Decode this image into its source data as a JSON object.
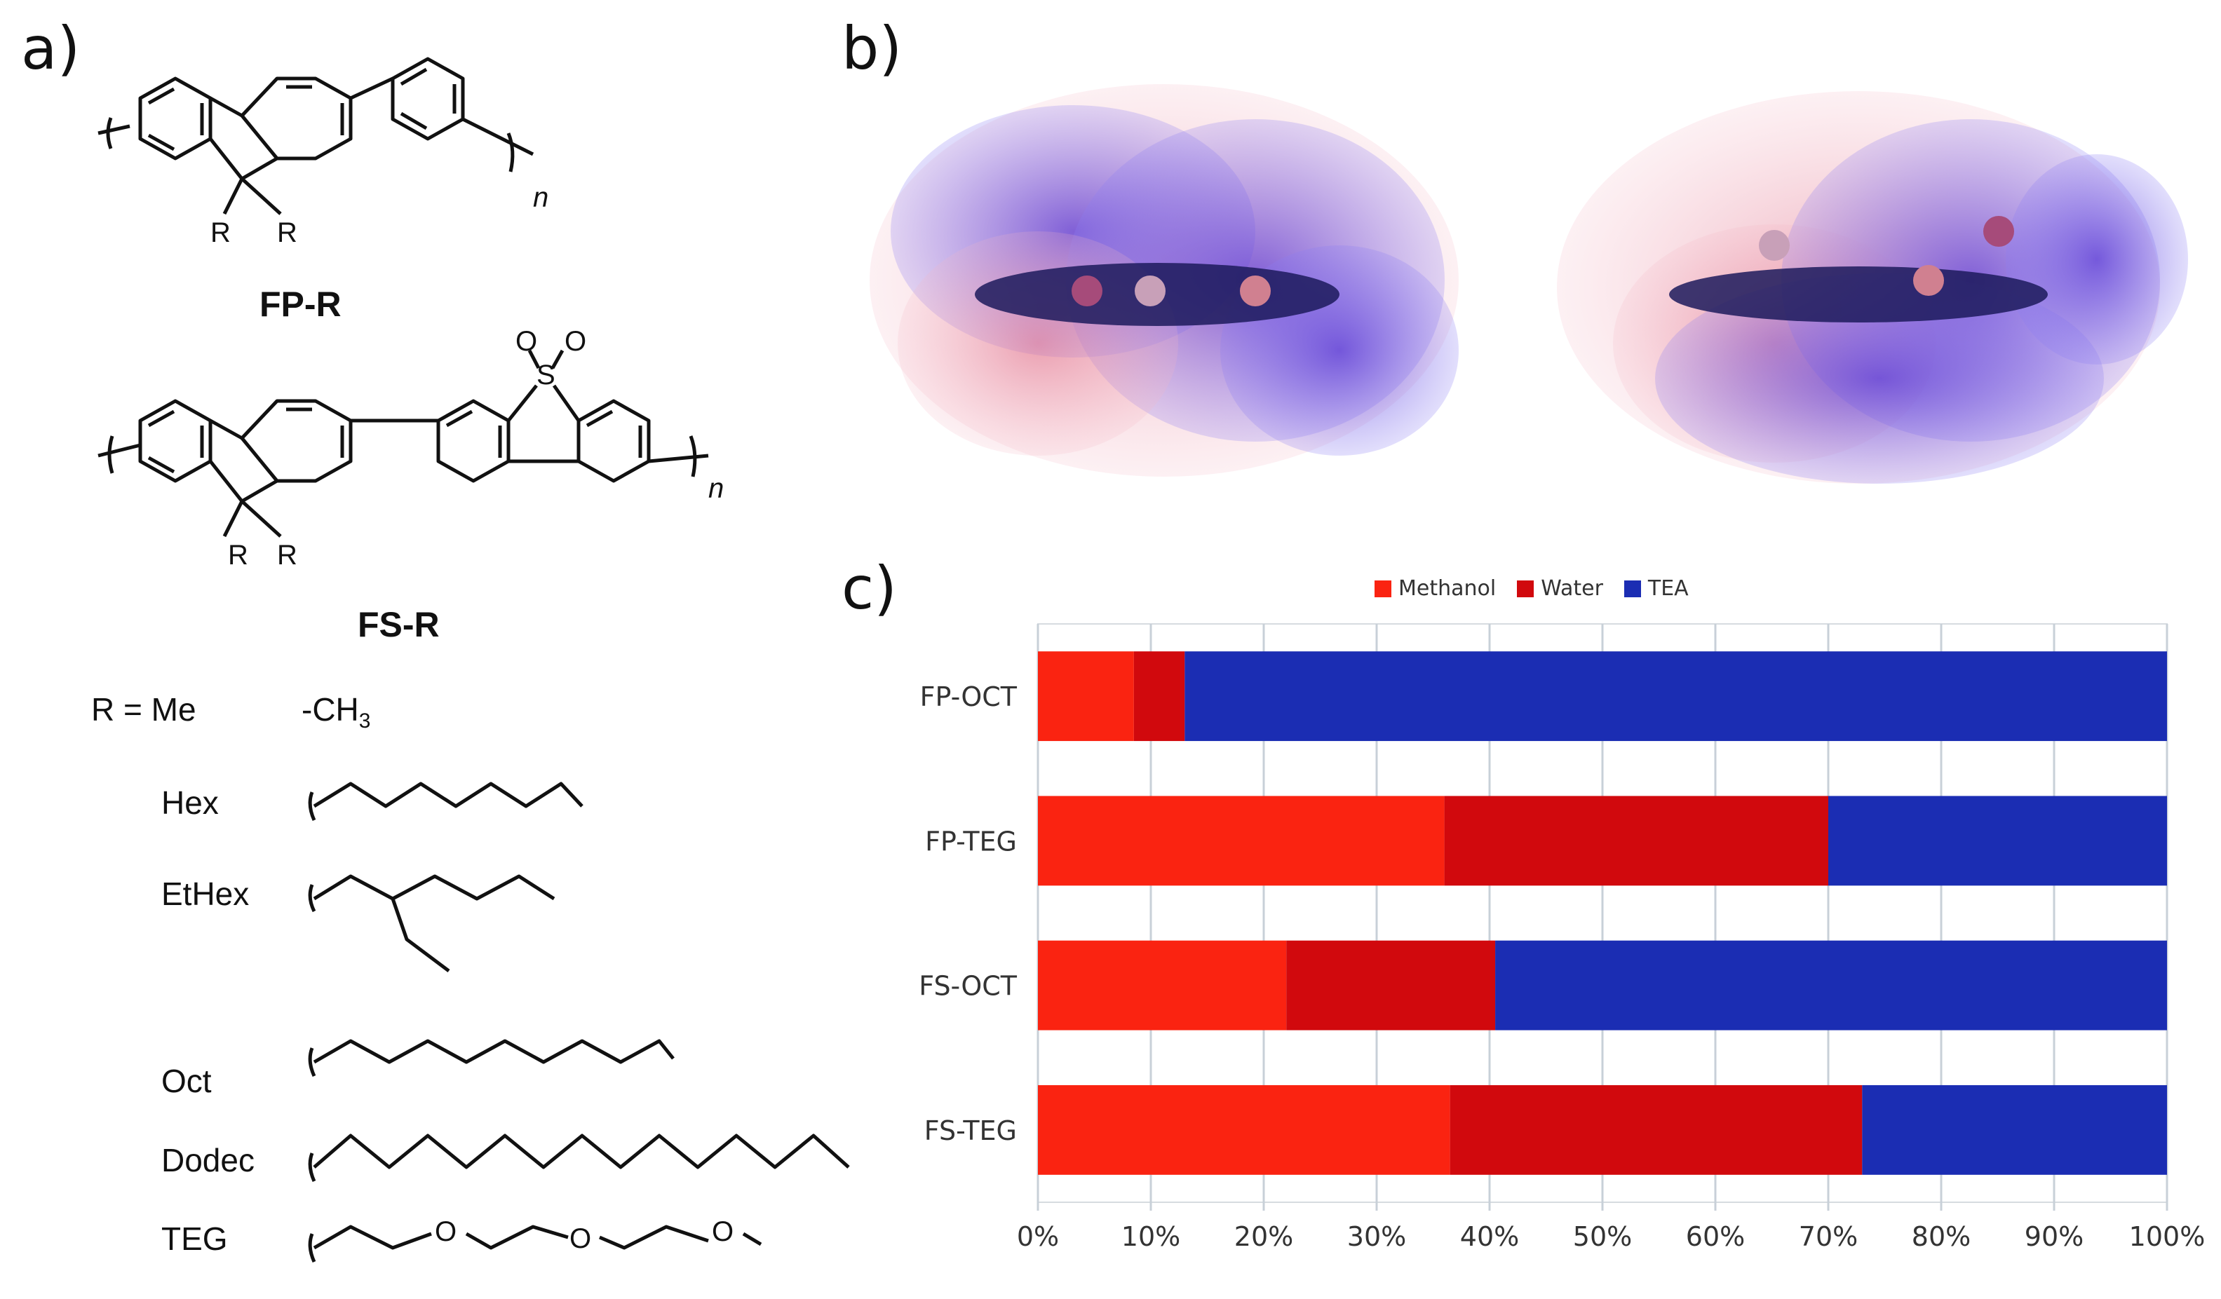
{
  "panels": {
    "a": "a)",
    "b": "b)",
    "c": "c)"
  },
  "structures": {
    "fp_title": "FP-R",
    "fs_title": "FS-R",
    "substituent_atom": "R",
    "repeat_subscript": "n",
    "sulfur": "S",
    "oxygen": "O",
    "r_equals": "R = Me",
    "methyl": "-CH",
    "methyl_sub": "3",
    "chains": [
      "Hex",
      "EtHex",
      "Oct",
      "Dodec",
      "TEG"
    ]
  },
  "colors": {
    "methanol": "#fa2311",
    "water": "#d1090d",
    "tea": "#1b2db3",
    "grid": "#c8d0d8"
  },
  "chart_data": {
    "type": "bar",
    "orientation": "horizontal",
    "stacked": true,
    "normalized": true,
    "categories": [
      "FP-OCT",
      "FP-TEG",
      "FS-OCT",
      "FS-TEG"
    ],
    "series": [
      {
        "name": "Methanol",
        "values": [
          8.5,
          36,
          22,
          36.5
        ]
      },
      {
        "name": "Water",
        "values": [
          4.5,
          34,
          18.5,
          36.5
        ]
      },
      {
        "name": "TEA",
        "values": [
          87,
          30,
          59.5,
          27
        ]
      }
    ],
    "xlim": [
      0,
      100
    ],
    "xticks": [
      "0%",
      "10%",
      "20%",
      "30%",
      "40%",
      "50%",
      "60%",
      "70%",
      "80%",
      "90%",
      "100%"
    ],
    "grid": true,
    "legend": "top-center"
  }
}
